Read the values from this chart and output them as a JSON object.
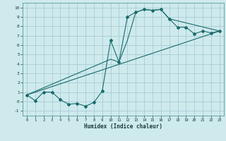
{
  "xlabel": "Humidex (Indice chaleur)",
  "bg_color": "#ceeaed",
  "grid_color": "#a8cdd4",
  "line_color": "#1a6b6b",
  "xlim": [
    -0.5,
    23.5
  ],
  "ylim": [
    -1.5,
    10.5
  ],
  "xticks": [
    0,
    1,
    2,
    3,
    4,
    5,
    6,
    7,
    8,
    9,
    10,
    11,
    12,
    13,
    14,
    15,
    16,
    17,
    18,
    19,
    20,
    21,
    22,
    23
  ],
  "yticks": [
    -1,
    0,
    1,
    2,
    3,
    4,
    5,
    6,
    7,
    8,
    9,
    10
  ],
  "curve1_x": [
    0,
    1,
    2,
    3,
    4,
    5,
    6,
    7,
    8,
    9,
    10,
    11,
    12,
    13,
    14,
    15,
    16,
    17,
    18,
    19,
    20,
    21,
    22,
    23
  ],
  "curve1_y": [
    0.7,
    0.1,
    1.0,
    1.0,
    0.2,
    -0.3,
    -0.2,
    -0.5,
    -0.1,
    1.1,
    6.5,
    4.2,
    9.0,
    9.5,
    9.8,
    9.7,
    9.8,
    8.8,
    7.9,
    7.9,
    7.2,
    7.5,
    7.3,
    7.5
  ],
  "curve2_x": [
    0,
    10,
    11,
    12,
    13,
    14,
    15,
    16,
    17,
    23
  ],
  "curve2_y": [
    0.7,
    4.5,
    4.2,
    6.5,
    9.5,
    9.8,
    9.7,
    9.8,
    8.8,
    7.5
  ],
  "curve3_x": [
    0,
    23
  ],
  "curve3_y": [
    0.7,
    7.5
  ]
}
